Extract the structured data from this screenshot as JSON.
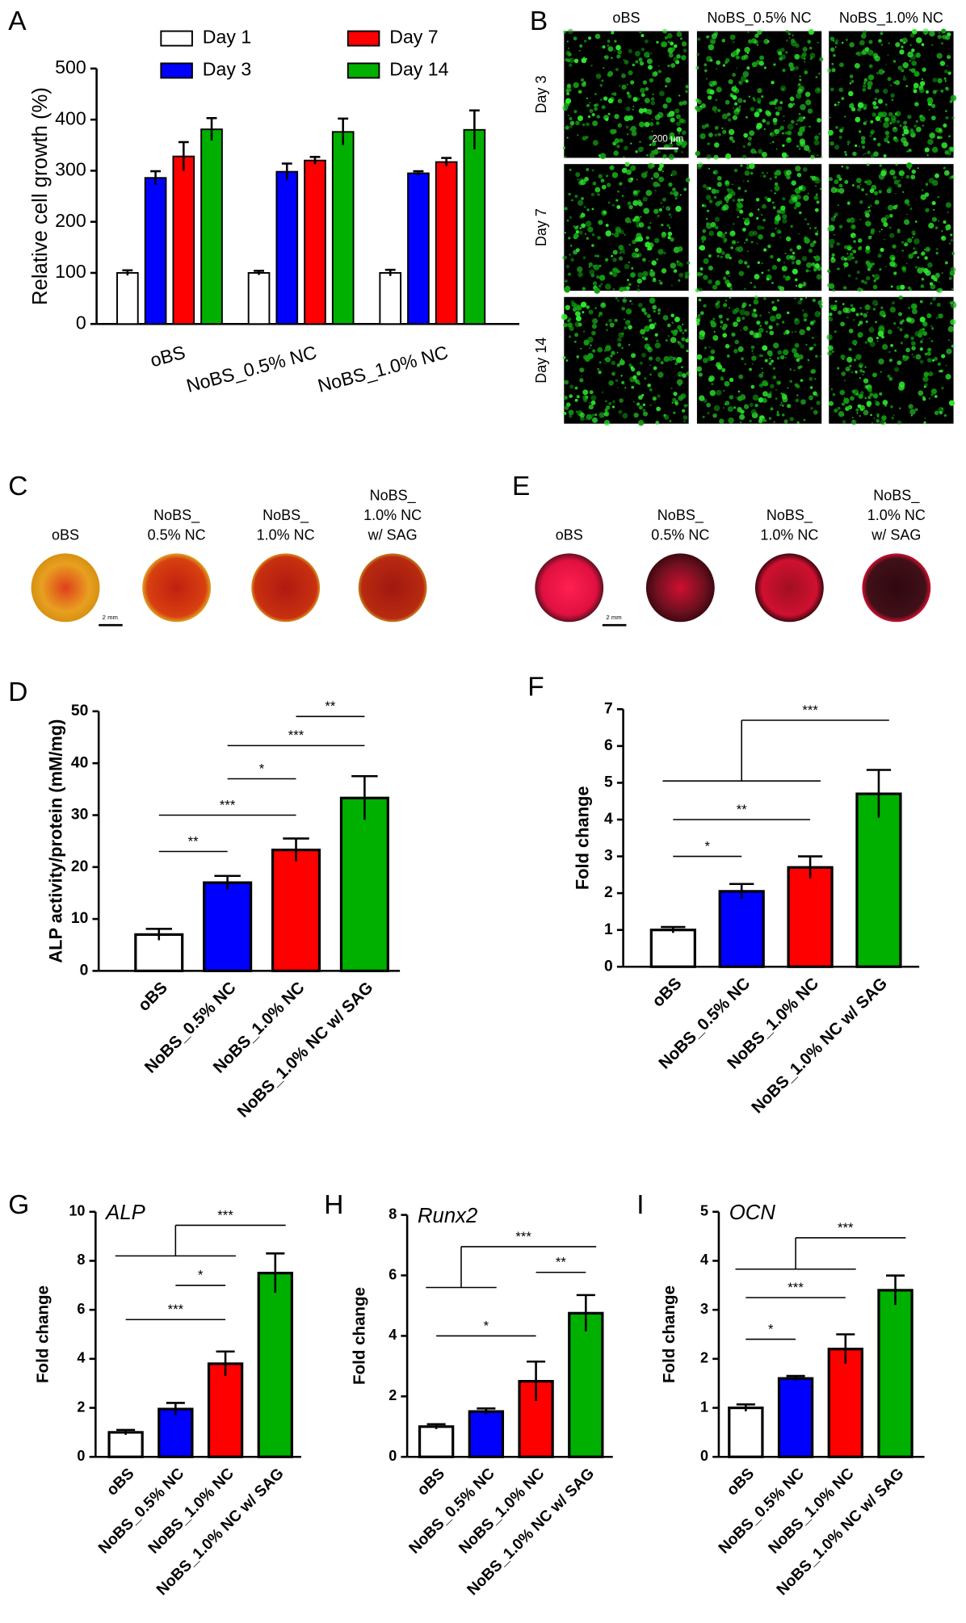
{
  "chart_data": [
    {
      "type": "bar",
      "label": "A",
      "ylabel": "Relative cell growth (%)",
      "categories": [
        "oBS",
        "NoBS_0.5% NC",
        "NoBS_1.0% NC"
      ],
      "series": [
        {
          "name": "Day 1",
          "color": "#ffffff",
          "values": [
            100,
            100,
            100
          ],
          "errors": [
            5,
            4,
            6
          ]
        },
        {
          "name": "Day 3",
          "color": "#0000ff",
          "values": [
            286,
            298,
            295
          ],
          "errors": [
            13,
            16,
            4
          ]
        },
        {
          "name": "Day 7",
          "color": "#ff0000",
          "values": [
            328,
            320,
            317
          ],
          "errors": [
            28,
            7,
            8
          ]
        },
        {
          "name": "Day 14",
          "color": "#00b000",
          "values": [
            381,
            376,
            380
          ],
          "errors": [
            22,
            26,
            38
          ]
        }
      ],
      "ylim": [
        0,
        500
      ],
      "yticks": [
        0,
        100,
        200,
        300,
        400,
        500
      ]
    },
    {
      "type": "bar",
      "label": "D",
      "ylabel": "ALP activity/protein  (mM/mg)",
      "categories": [
        "oBS",
        "NoBS_0.5% NC",
        "NoBS_1.0% NC",
        "NoBS_1.0% NC w/ SAG"
      ],
      "values": [
        7,
        17,
        23.3,
        33.3
      ],
      "errors": [
        1.1,
        1.3,
        2.2,
        4.2
      ],
      "colors": [
        "#ffffff",
        "#0000ff",
        "#ff0000",
        "#00b000"
      ],
      "ylim": [
        0,
        50
      ],
      "yticks": [
        0,
        10,
        20,
        30,
        40,
        50
      ],
      "annotations": [
        {
          "text": "**",
          "from": 0,
          "to": 1,
          "y": 23
        },
        {
          "text": "***",
          "from": 0,
          "to": 2,
          "y": 30
        },
        {
          "text": "*",
          "from": 1,
          "to": 2,
          "y": 37
        },
        {
          "text": "***",
          "from": 1,
          "to": 3,
          "y": 43.4
        },
        {
          "text": "**",
          "from": 2,
          "to": 3,
          "y": 49
        }
      ]
    },
    {
      "type": "bar",
      "label": "F",
      "ylabel": "Fold change",
      "categories": [
        "oBS",
        "NoBS_0.5% NC",
        "NoBS_1.0% NC",
        "NoBS_1.0% NC w/ SAG"
      ],
      "values": [
        1.0,
        2.05,
        2.7,
        4.7
      ],
      "errors": [
        0.08,
        0.2,
        0.3,
        0.65
      ],
      "colors": [
        "#ffffff",
        "#0000ff",
        "#ff0000",
        "#00b000"
      ],
      "ylim": [
        0,
        7
      ],
      "yticks": [
        0,
        1,
        2,
        3,
        4,
        5,
        6,
        7
      ],
      "annotations": [
        {
          "text": "*",
          "from": 0,
          "to": 1,
          "y": 3.0
        },
        {
          "text": "**",
          "from": 0,
          "to": 2,
          "y": 4.0
        },
        {
          "text": "***",
          "group": [
            0,
            2
          ],
          "group_y": 5.05,
          "to": 3,
          "y": 6.7
        }
      ]
    },
    {
      "type": "bar",
      "label": "G",
      "title": "ALP",
      "ylabel": "Fold change",
      "categories": [
        "oBS",
        "NoBS_0.5% NC",
        "NoBS_1.0% NC",
        "NoBS_1.0% NC w/ SAG"
      ],
      "values": [
        1.0,
        1.95,
        3.8,
        7.5
      ],
      "errors": [
        0.1,
        0.25,
        0.5,
        0.8
      ],
      "colors": [
        "#ffffff",
        "#0000ff",
        "#ff0000",
        "#00b000"
      ],
      "ylim": [
        0,
        10
      ],
      "yticks": [
        0,
        2,
        4,
        6,
        8,
        10
      ],
      "annotations": [
        {
          "text": "***",
          "from": 0,
          "to": 2,
          "y": 5.6
        },
        {
          "text": "*",
          "from": 1,
          "to": 2,
          "y": 7.0
        },
        {
          "text": "***",
          "group": [
            0,
            2
          ],
          "group_y": 8.2,
          "to": 3,
          "y": 9.45
        }
      ]
    },
    {
      "type": "bar",
      "label": "H",
      "title": "Runx2",
      "ylabel": "Fold change",
      "categories": [
        "oBS",
        "NoBS_0.5% NC",
        "NoBS_1.0% NC",
        "NoBS_1.0% NC w/ SAG"
      ],
      "values": [
        1.0,
        1.5,
        2.5,
        4.75
      ],
      "errors": [
        0.08,
        0.1,
        0.65,
        0.6
      ],
      "colors": [
        "#ffffff",
        "#0000ff",
        "#ff0000",
        "#00b000"
      ],
      "ylim": [
        0,
        8
      ],
      "yticks": [
        0,
        2,
        4,
        6,
        8
      ],
      "annotations": [
        {
          "text": "*",
          "from": 0,
          "to": 2,
          "y": 4.0
        },
        {
          "text": "**",
          "from": 2,
          "to": 3,
          "y": 6.1
        },
        {
          "text": "***",
          "group": [
            0,
            1
          ],
          "group_y": 5.6,
          "to": 3,
          "y": 6.95
        }
      ]
    },
    {
      "type": "bar",
      "label": "I",
      "title": "OCN",
      "ylabel": "Fold change",
      "categories": [
        "oBS",
        "NoBS_0.5% NC",
        "NoBS_1.0% NC",
        "NoBS_1.0% NC w/ SAG"
      ],
      "values": [
        1.0,
        1.6,
        2.2,
        3.4
      ],
      "errors": [
        0.07,
        0.05,
        0.3,
        0.3
      ],
      "colors": [
        "#ffffff",
        "#0000ff",
        "#ff0000",
        "#00b000"
      ],
      "ylim": [
        0,
        5
      ],
      "yticks": [
        0,
        1,
        2,
        3,
        4,
        5
      ],
      "annotations": [
        {
          "text": "*",
          "from": 0,
          "to": 1,
          "y": 2.4
        },
        {
          "text": "***",
          "from": 0,
          "to": 2,
          "y": 3.25
        },
        {
          "text": "***",
          "group": [
            0,
            2
          ],
          "group_y": 3.83,
          "to": 3,
          "y": 4.47
        }
      ]
    }
  ],
  "panel_b": {
    "label": "B",
    "columns": [
      "oBS",
      "NoBS_0.5% NC",
      "NoBS_1.0% NC"
    ],
    "rows": [
      "Day 3",
      "Day 7",
      "Day 14"
    ],
    "scale_bar": "200 μm"
  },
  "panel_c": {
    "label": "C",
    "columns": [
      [
        "oBS"
      ],
      [
        "NoBS_",
        "0.5% NC"
      ],
      [
        "NoBS_",
        "1.0% NC"
      ],
      [
        "NoBS_",
        "1.0% NC",
        "w/ SAG"
      ]
    ],
    "scale_bar": "2 mm"
  },
  "panel_e": {
    "label": "E",
    "columns": [
      [
        "oBS"
      ],
      [
        "NoBS_",
        "0.5% NC"
      ],
      [
        "NoBS_",
        "1.0% NC"
      ],
      [
        "NoBS_",
        "1.0% NC",
        "w/ SAG"
      ]
    ],
    "scale_bar": "2 mm"
  }
}
